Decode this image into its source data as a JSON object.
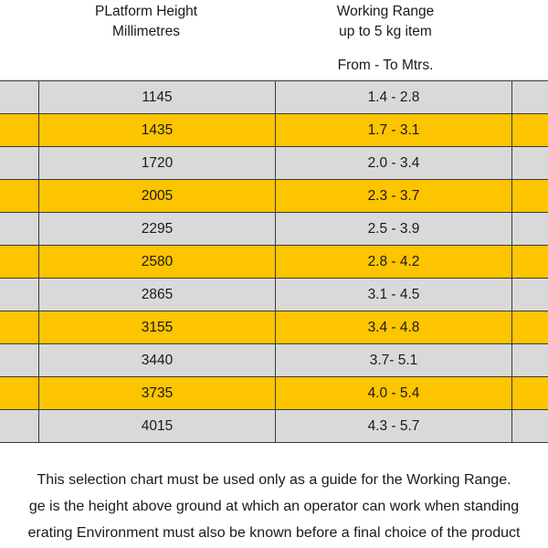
{
  "headers": {
    "platform_line1": "PLatform Height",
    "platform_line2": "Millimetres",
    "range_line1": "Working Range",
    "range_line2": "up to 5 kg item",
    "range_sub": "From - To Mtrs."
  },
  "rows": [
    {
      "height": "1145",
      "range": "1.4 - 2.8",
      "color": "#d9d9d9"
    },
    {
      "height": "1435",
      "range": "1.7 - 3.1",
      "color": "#fdc400"
    },
    {
      "height": "1720",
      "range": "2.0 -  3.4",
      "color": "#d9d9d9"
    },
    {
      "height": "2005",
      "range": "2.3 - 3.7",
      "color": "#fdc400"
    },
    {
      "height": "2295",
      "range": "2.5 - 3.9",
      "color": "#d9d9d9"
    },
    {
      "height": "2580",
      "range": "2.8 - 4.2",
      "color": "#fdc400"
    },
    {
      "height": "2865",
      "range": "3.1 - 4.5",
      "color": "#d9d9d9"
    },
    {
      "height": "3155",
      "range": "3.4 - 4.8",
      "color": "#fdc400"
    },
    {
      "height": "3440",
      "range": "3.7- 5.1",
      "color": "#d9d9d9"
    },
    {
      "height": "3735",
      "range": "4.0 - 5.4",
      "color": "#fdc400"
    },
    {
      "height": "4015",
      "range": "4.3 - 5.7",
      "color": "#d9d9d9"
    }
  ],
  "footer": {
    "line1": "This selection chart must be used only as a guide for the Working Range.",
    "line2": "ge is the height above ground at which an operator can work when standing",
    "line3": "erating Environment must also be known before a final choice of the product"
  }
}
